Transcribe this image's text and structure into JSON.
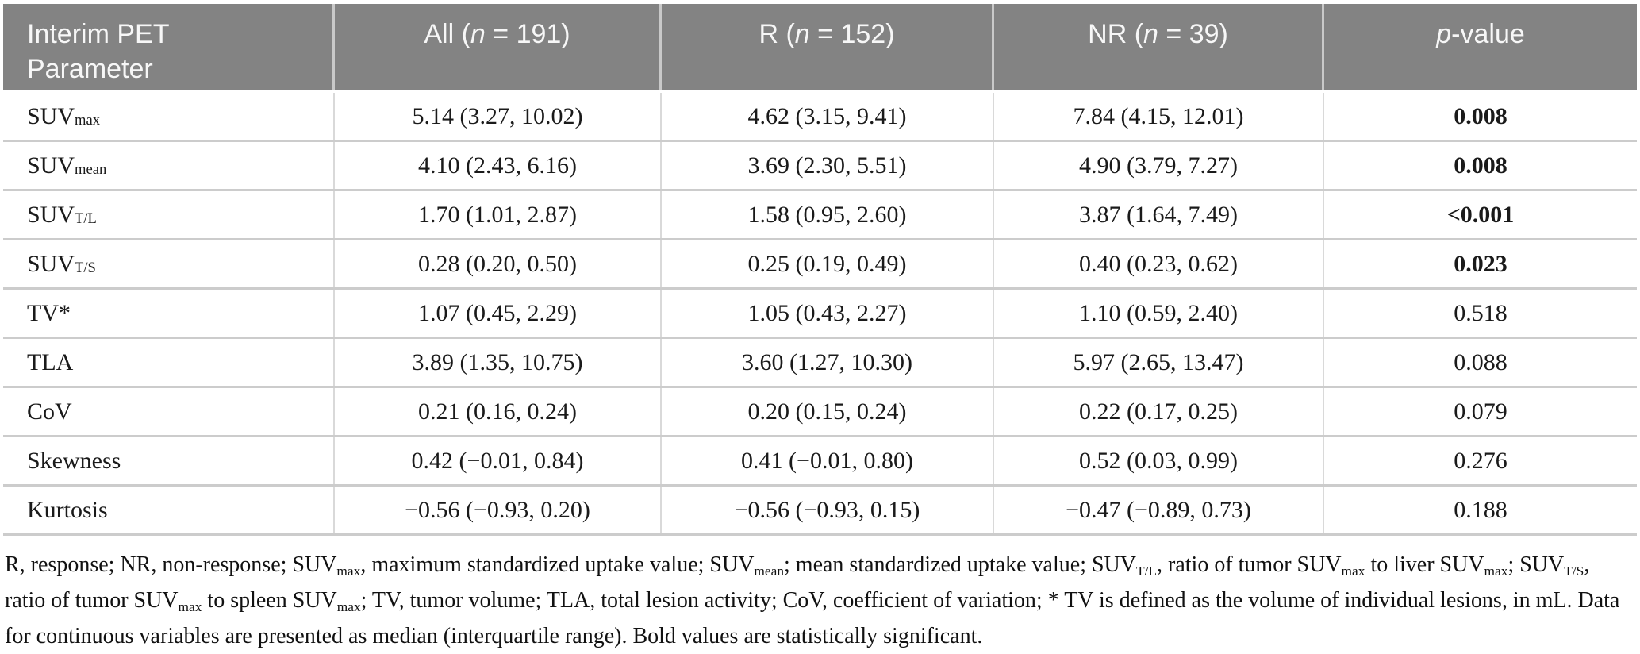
{
  "colors": {
    "header_bg": "#838383",
    "header_text": "#f7f7f7",
    "row_separator": "#cccccc",
    "column_separator": "#d9d9d9",
    "body_text": "#1a1a1a"
  },
  "header": {
    "param_title": "Interim PET Parameter",
    "cols": [
      [
        {
          "t": "All ("
        },
        {
          "t": "n",
          "i": true
        },
        {
          "t": " = 191)"
        }
      ],
      [
        {
          "t": "R ("
        },
        {
          "t": "n",
          "i": true
        },
        {
          "t": " = 152)"
        }
      ],
      [
        {
          "t": "NR ("
        },
        {
          "t": "n",
          "i": true
        },
        {
          "t": " = 39)"
        }
      ],
      [
        {
          "t": "p",
          "i": true
        },
        {
          "t": "-value"
        }
      ]
    ]
  },
  "rows": [
    {
      "param": [
        {
          "t": "SUV"
        },
        {
          "t": "max",
          "sub": true
        }
      ],
      "all": "5.14 (3.27, 10.02)",
      "r": "4.62 (3.15, 9.41)",
      "nr": "7.84 (4.15, 12.01)",
      "p": "0.008",
      "p_bold": true
    },
    {
      "param": [
        {
          "t": "SUV"
        },
        {
          "t": "mean",
          "sub": true
        }
      ],
      "all": "4.10 (2.43, 6.16)",
      "r": "3.69 (2.30, 5.51)",
      "nr": "4.90 (3.79, 7.27)",
      "p": "0.008",
      "p_bold": true
    },
    {
      "param": [
        {
          "t": "SUV"
        },
        {
          "t": "T/L",
          "sub": true
        }
      ],
      "all": "1.70 (1.01, 2.87)",
      "r": "1.58 (0.95, 2.60)",
      "nr": "3.87 (1.64, 7.49)",
      "p": "<0.001",
      "p_bold": true
    },
    {
      "param": [
        {
          "t": "SUV"
        },
        {
          "t": "T/S",
          "sub": true
        }
      ],
      "all": "0.28 (0.20, 0.50)",
      "r": "0.25 (0.19, 0.49)",
      "nr": "0.40 (0.23, 0.62)",
      "p": "0.023",
      "p_bold": true
    },
    {
      "param": [
        {
          "t": "TV*"
        }
      ],
      "all": "1.07 (0.45, 2.29)",
      "r": "1.05 (0.43, 2.27)",
      "nr": "1.10 (0.59, 2.40)",
      "p": "0.518",
      "p_bold": false
    },
    {
      "param": [
        {
          "t": "TLA"
        }
      ],
      "all": "3.89 (1.35, 10.75)",
      "r": "3.60 (1.27, 10.30)",
      "nr": "5.97 (2.65, 13.47)",
      "p": "0.088",
      "p_bold": false
    },
    {
      "param": [
        {
          "t": "CoV"
        }
      ],
      "all": "0.21 (0.16, 0.24)",
      "r": "0.20 (0.15, 0.24)",
      "nr": "0.22 (0.17, 0.25)",
      "p": "0.079",
      "p_bold": false
    },
    {
      "param": [
        {
          "t": "Skewness"
        }
      ],
      "all": "0.42 (−0.01, 0.84)",
      "r": "0.41 (−0.01, 0.80)",
      "nr": "0.52 (0.03, 0.99)",
      "p": "0.276",
      "p_bold": false
    },
    {
      "param": [
        {
          "t": "Kurtosis"
        }
      ],
      "all": "−0.56 (−0.93, 0.20)",
      "r": "−0.56 (−0.93, 0.15)",
      "nr": "−0.47 (−0.89, 0.73)",
      "p": "0.188",
      "p_bold": false
    }
  ],
  "footnote": {
    "segments": [
      {
        "t": "R, response; NR, non-response; SUV"
      },
      {
        "t": "max",
        "sub": true
      },
      {
        "t": ", maximum standardized uptake value; SUV"
      },
      {
        "t": "mean",
        "sub": true
      },
      {
        "t": "; mean standardized uptake value; SUV"
      },
      {
        "t": "T/L",
        "sub": true
      },
      {
        "t": ", ratio of tumor SUV"
      },
      {
        "t": "max",
        "sub": true
      },
      {
        "t": " to liver SUV"
      },
      {
        "t": "max",
        "sub": true
      },
      {
        "t": "; SUV"
      },
      {
        "t": "T/S",
        "sub": true
      },
      {
        "t": ", ratio of tumor SUV"
      },
      {
        "t": "max",
        "sub": true
      },
      {
        "t": " to spleen SUV"
      },
      {
        "t": "max",
        "sub": true
      },
      {
        "t": "; TV, tumor volume; TLA, total lesion activity; CoV, coefficient of variation; * TV is defined as the volume of individual lesions, in mL. Data for continuous variables are presented as median (interquartile range). Bold values are statistically significant."
      }
    ]
  }
}
